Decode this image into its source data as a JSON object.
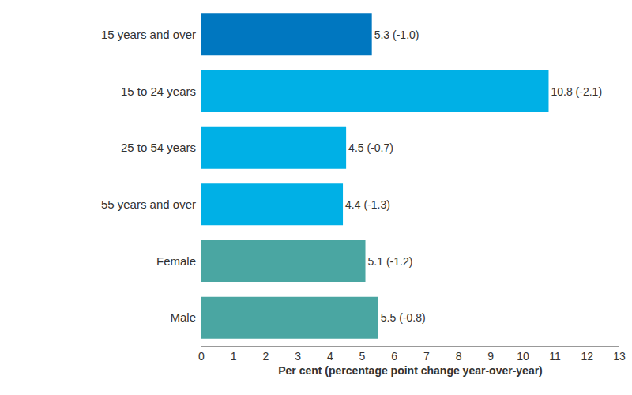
{
  "chart_data": {
    "type": "bar",
    "orientation": "horizontal",
    "categories": [
      "15 years and over",
      "15 to 24 years",
      "25 to 54 years",
      "55 years and over",
      "Female",
      "Male"
    ],
    "values": [
      5.3,
      10.8,
      4.5,
      4.4,
      5.1,
      5.5
    ],
    "value_labels": [
      "5.3 (-1.0)",
      "10.8 (-2.1)",
      "4.5 (-0.7)",
      "4.4 (-1.3)",
      "5.1 (-1.2)",
      "5.5 (-0.8)"
    ],
    "data_labels": true,
    "colors": [
      "#0077c0",
      "#00b0e6",
      "#00b0e6",
      "#00b0e6",
      "#4aa6a2",
      "#4aa6a2"
    ],
    "xlabel": "Per cent (percentage point change year-over-year)",
    "xlim": [
      0,
      13
    ],
    "xticks": [
      0,
      1,
      2,
      3,
      4,
      5,
      6,
      7,
      8,
      9,
      10,
      11,
      12,
      13
    ],
    "grid": false
  }
}
